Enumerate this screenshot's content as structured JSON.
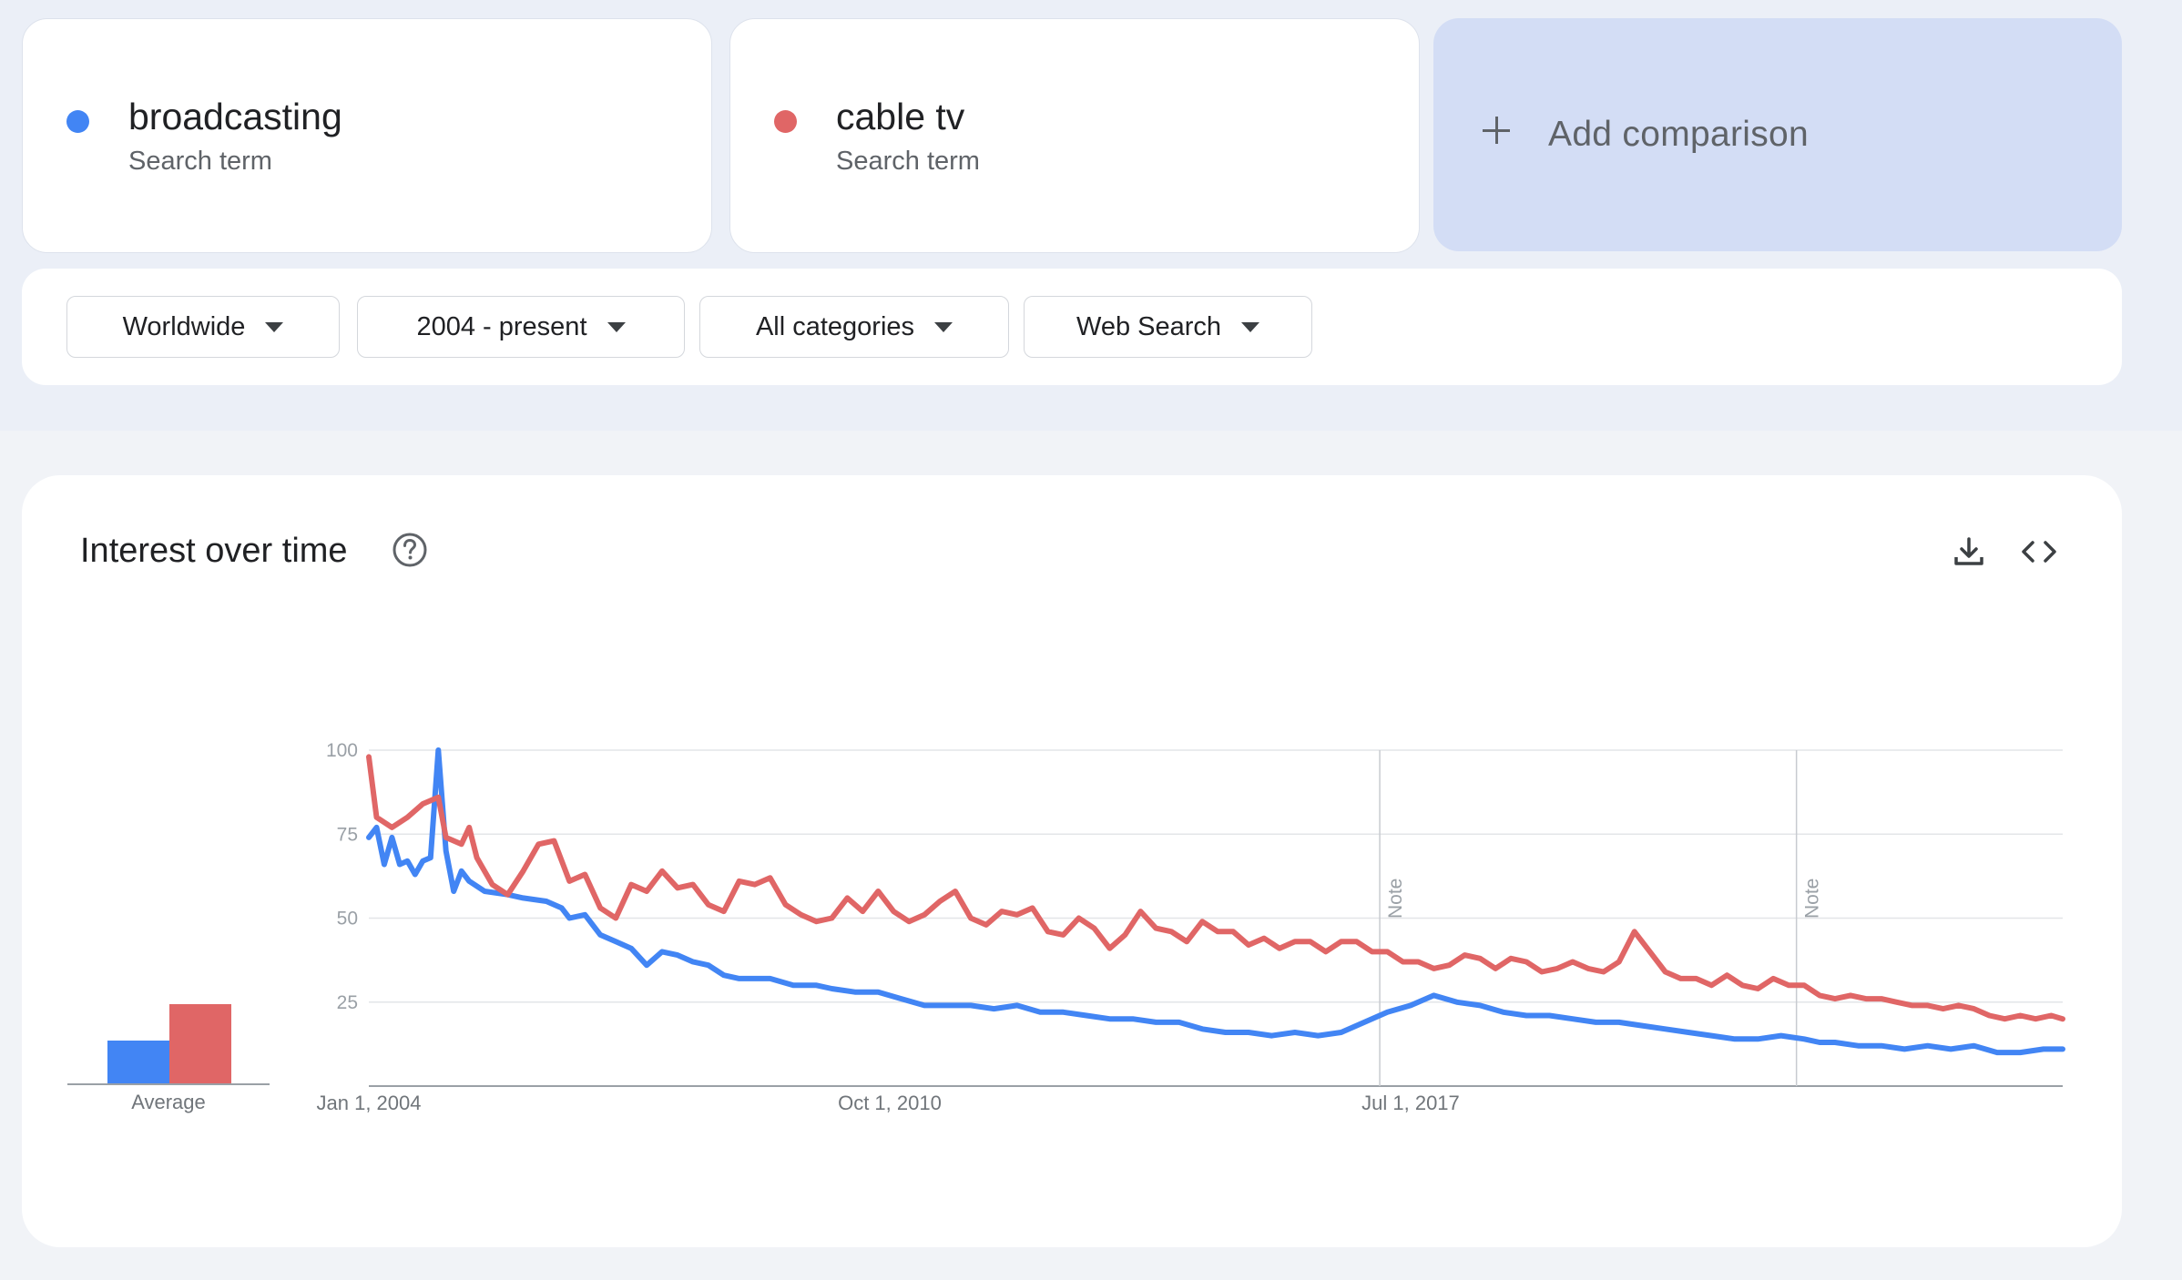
{
  "terms": [
    {
      "name": "broadcasting",
      "subtitle": "Search term",
      "color": "#4285f4"
    },
    {
      "name": "cable tv",
      "subtitle": "Search term",
      "color": "#e06666"
    }
  ],
  "add_comparison": {
    "label": "Add comparison"
  },
  "filters": [
    {
      "label": "Worldwide"
    },
    {
      "label": "2004 - present"
    },
    {
      "label": "All categories"
    },
    {
      "label": "Web Search"
    }
  ],
  "section": {
    "title": "Interest over time"
  },
  "icons": {
    "help": "help-circle-icon",
    "download": "download-icon",
    "embed": "code-icon"
  },
  "average": {
    "label": "Average",
    "values": {
      "broadcasting": 24,
      "cable tv": 44
    }
  },
  "chart_data": {
    "type": "line",
    "ylim": [
      0,
      100
    ],
    "yticks": [
      "100",
      "75",
      "50",
      "25"
    ],
    "x_tick_labels": [
      "Jan 1, 2004",
      "Oct 1, 2010",
      "Jul 1, 2017"
    ],
    "notes": [
      "Note",
      "Note"
    ],
    "x_start": "Jan 2004",
    "x_end": "Dec 2025",
    "series": [
      {
        "name": "broadcasting",
        "color": "#4285f4",
        "values": [
          [
            2004.0,
            74
          ],
          [
            2004.1,
            77
          ],
          [
            2004.2,
            66
          ],
          [
            2004.3,
            74
          ],
          [
            2004.4,
            66
          ],
          [
            2004.5,
            67
          ],
          [
            2004.6,
            63
          ],
          [
            2004.7,
            67
          ],
          [
            2004.8,
            68
          ],
          [
            2004.9,
            100
          ],
          [
            2005.0,
            70
          ],
          [
            2005.1,
            58
          ],
          [
            2005.2,
            64
          ],
          [
            2005.3,
            61
          ],
          [
            2005.5,
            58
          ],
          [
            2005.8,
            57
          ],
          [
            2006.0,
            56
          ],
          [
            2006.3,
            55
          ],
          [
            2006.5,
            53
          ],
          [
            2006.6,
            50
          ],
          [
            2006.8,
            51
          ],
          [
            2007.0,
            45
          ],
          [
            2007.2,
            43
          ],
          [
            2007.4,
            41
          ],
          [
            2007.6,
            36
          ],
          [
            2007.8,
            40
          ],
          [
            2008.0,
            39
          ],
          [
            2008.2,
            37
          ],
          [
            2008.4,
            36
          ],
          [
            2008.6,
            33
          ],
          [
            2008.8,
            32
          ],
          [
            2009.0,
            32
          ],
          [
            2009.2,
            32
          ],
          [
            2009.5,
            30
          ],
          [
            2009.8,
            30
          ],
          [
            2010.0,
            29
          ],
          [
            2010.3,
            28
          ],
          [
            2010.6,
            28
          ],
          [
            2010.9,
            26
          ],
          [
            2011.2,
            24
          ],
          [
            2011.5,
            24
          ],
          [
            2011.8,
            24
          ],
          [
            2012.1,
            23
          ],
          [
            2012.4,
            24
          ],
          [
            2012.7,
            22
          ],
          [
            2013.0,
            22
          ],
          [
            2013.3,
            21
          ],
          [
            2013.6,
            20
          ],
          [
            2013.9,
            20
          ],
          [
            2014.2,
            19
          ],
          [
            2014.5,
            19
          ],
          [
            2014.8,
            17
          ],
          [
            2015.1,
            16
          ],
          [
            2015.4,
            16
          ],
          [
            2015.7,
            15
          ],
          [
            2016.0,
            16
          ],
          [
            2016.3,
            15
          ],
          [
            2016.6,
            16
          ],
          [
            2016.9,
            19
          ],
          [
            2017.2,
            22
          ],
          [
            2017.5,
            24
          ],
          [
            2017.8,
            27
          ],
          [
            2018.1,
            25
          ],
          [
            2018.4,
            24
          ],
          [
            2018.7,
            22
          ],
          [
            2019.0,
            21
          ],
          [
            2019.3,
            21
          ],
          [
            2019.6,
            20
          ],
          [
            2019.9,
            19
          ],
          [
            2020.2,
            19
          ],
          [
            2020.5,
            18
          ],
          [
            2020.8,
            17
          ],
          [
            2021.1,
            16
          ],
          [
            2021.4,
            15
          ],
          [
            2021.7,
            14
          ],
          [
            2022.0,
            14
          ],
          [
            2022.3,
            15
          ],
          [
            2022.6,
            14
          ],
          [
            2022.8,
            13
          ],
          [
            2023.0,
            13
          ],
          [
            2023.3,
            12
          ],
          [
            2023.6,
            12
          ],
          [
            2023.9,
            11
          ],
          [
            2024.2,
            12
          ],
          [
            2024.5,
            11
          ],
          [
            2024.8,
            12
          ],
          [
            2025.1,
            10
          ],
          [
            2025.4,
            10
          ],
          [
            2025.7,
            11
          ],
          [
            2025.95,
            11
          ]
        ]
      },
      {
        "name": "cable tv",
        "color": "#e06666",
        "values": [
          [
            2004.0,
            98
          ],
          [
            2004.1,
            80
          ],
          [
            2004.3,
            77
          ],
          [
            2004.5,
            80
          ],
          [
            2004.7,
            84
          ],
          [
            2004.9,
            86
          ],
          [
            2005.0,
            74
          ],
          [
            2005.2,
            72
          ],
          [
            2005.3,
            77
          ],
          [
            2005.4,
            68
          ],
          [
            2005.6,
            60
          ],
          [
            2005.8,
            57
          ],
          [
            2006.0,
            64
          ],
          [
            2006.2,
            72
          ],
          [
            2006.4,
            73
          ],
          [
            2006.6,
            61
          ],
          [
            2006.8,
            63
          ],
          [
            2007.0,
            53
          ],
          [
            2007.2,
            50
          ],
          [
            2007.4,
            60
          ],
          [
            2007.6,
            58
          ],
          [
            2007.8,
            64
          ],
          [
            2008.0,
            59
          ],
          [
            2008.2,
            60
          ],
          [
            2008.4,
            54
          ],
          [
            2008.6,
            52
          ],
          [
            2008.8,
            61
          ],
          [
            2009.0,
            60
          ],
          [
            2009.2,
            62
          ],
          [
            2009.4,
            54
          ],
          [
            2009.6,
            51
          ],
          [
            2009.8,
            49
          ],
          [
            2010.0,
            50
          ],
          [
            2010.2,
            56
          ],
          [
            2010.4,
            52
          ],
          [
            2010.6,
            58
          ],
          [
            2010.8,
            52
          ],
          [
            2011.0,
            49
          ],
          [
            2011.2,
            51
          ],
          [
            2011.4,
            55
          ],
          [
            2011.6,
            58
          ],
          [
            2011.8,
            50
          ],
          [
            2012.0,
            48
          ],
          [
            2012.2,
            52
          ],
          [
            2012.4,
            51
          ],
          [
            2012.6,
            53
          ],
          [
            2012.8,
            46
          ],
          [
            2013.0,
            45
          ],
          [
            2013.2,
            50
          ],
          [
            2013.4,
            47
          ],
          [
            2013.6,
            41
          ],
          [
            2013.8,
            45
          ],
          [
            2014.0,
            52
          ],
          [
            2014.2,
            47
          ],
          [
            2014.4,
            46
          ],
          [
            2014.6,
            43
          ],
          [
            2014.8,
            49
          ],
          [
            2015.0,
            46
          ],
          [
            2015.2,
            46
          ],
          [
            2015.4,
            42
          ],
          [
            2015.6,
            44
          ],
          [
            2015.8,
            41
          ],
          [
            2016.0,
            43
          ],
          [
            2016.2,
            43
          ],
          [
            2016.4,
            40
          ],
          [
            2016.6,
            43
          ],
          [
            2016.8,
            43
          ],
          [
            2017.0,
            40
          ],
          [
            2017.2,
            40
          ],
          [
            2017.4,
            37
          ],
          [
            2017.6,
            37
          ],
          [
            2017.8,
            35
          ],
          [
            2018.0,
            36
          ],
          [
            2018.2,
            39
          ],
          [
            2018.4,
            38
          ],
          [
            2018.6,
            35
          ],
          [
            2018.8,
            38
          ],
          [
            2019.0,
            37
          ],
          [
            2019.2,
            34
          ],
          [
            2019.4,
            35
          ],
          [
            2019.6,
            37
          ],
          [
            2019.8,
            35
          ],
          [
            2020.0,
            34
          ],
          [
            2020.2,
            37
          ],
          [
            2020.4,
            46
          ],
          [
            2020.6,
            40
          ],
          [
            2020.8,
            34
          ],
          [
            2021.0,
            32
          ],
          [
            2021.2,
            32
          ],
          [
            2021.4,
            30
          ],
          [
            2021.6,
            33
          ],
          [
            2021.8,
            30
          ],
          [
            2022.0,
            29
          ],
          [
            2022.2,
            32
          ],
          [
            2022.4,
            30
          ],
          [
            2022.6,
            30
          ],
          [
            2022.8,
            27
          ],
          [
            2023.0,
            26
          ],
          [
            2023.2,
            27
          ],
          [
            2023.4,
            26
          ],
          [
            2023.6,
            26
          ],
          [
            2023.8,
            25
          ],
          [
            2024.0,
            24
          ],
          [
            2024.2,
            24
          ],
          [
            2024.4,
            23
          ],
          [
            2024.6,
            24
          ],
          [
            2024.8,
            23
          ],
          [
            2025.0,
            21
          ],
          [
            2025.2,
            20
          ],
          [
            2025.4,
            21
          ],
          [
            2025.6,
            20
          ],
          [
            2025.8,
            21
          ],
          [
            2025.95,
            20
          ]
        ]
      }
    ]
  }
}
